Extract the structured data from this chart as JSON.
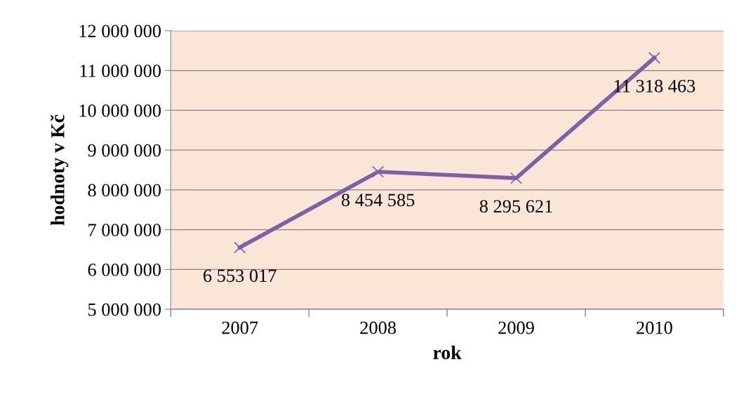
{
  "chart_data": {
    "type": "line",
    "xlabel": "rok",
    "ylabel": "hodnoty v Kč",
    "categories": [
      "2007",
      "2008",
      "2009",
      "2010"
    ],
    "series": [
      {
        "color": "#7f5fa8",
        "values": [
          6553017,
          8454585,
          8295621,
          11318463
        ],
        "value_labels": [
          "6 553 017",
          "8 454 585",
          "8 295 621",
          "11 318 463"
        ]
      }
    ],
    "ylim": [
      5000000,
      12000000
    ],
    "yticks": [
      {
        "value": 5000000,
        "label": "5 000 000"
      },
      {
        "value": 6000000,
        "label": "6 000 000"
      },
      {
        "value": 7000000,
        "label": "7 000 000"
      },
      {
        "value": 8000000,
        "label": "8 000 000"
      },
      {
        "value": 9000000,
        "label": "9 000 000"
      },
      {
        "value": 10000000,
        "label": "10 000 000"
      },
      {
        "value": 11000000,
        "label": "11 000 000"
      },
      {
        "value": 12000000,
        "label": "12 000 000"
      }
    ],
    "grid": "y",
    "marker": "cross",
    "line_style": "solid",
    "legend": false
  }
}
